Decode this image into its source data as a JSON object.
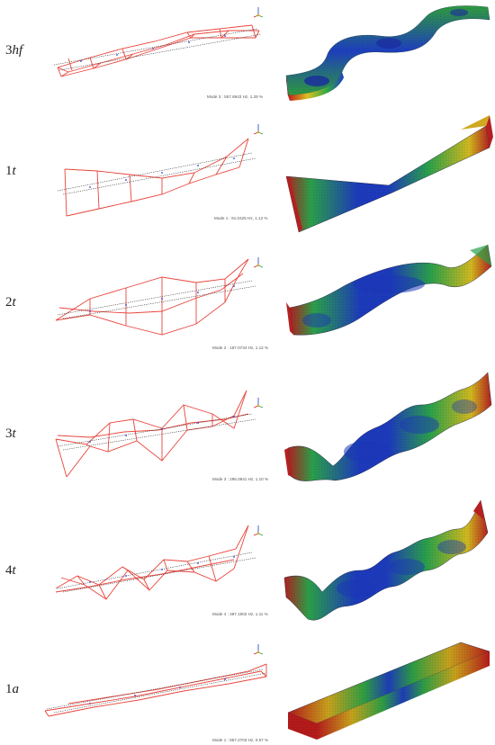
{
  "modes": [
    {
      "id": "3hf",
      "label_num": "3",
      "label_letters": "hf",
      "caption": "Mode  3 : 557.6943 Hz, 1.29 %"
    },
    {
      "id": "1t",
      "label_num": "1",
      "label_letters": "t",
      "caption": "Mode  1 : 91.0425 Hz, 1.12 %"
    },
    {
      "id": "2t",
      "label_num": "2",
      "label_letters": "t",
      "caption": "Mode  2 : 187.0734 Hz, 1.12 %"
    },
    {
      "id": "3t",
      "label_num": "3",
      "label_letters": "t",
      "caption": "Mode  3 : 295.0841 Hz, 1.10 %"
    },
    {
      "id": "4t",
      "label_num": "4",
      "label_letters": "t",
      "caption": "Mode  4 : 397.1902 Hz, 1.11 %"
    },
    {
      "id": "1a",
      "label_num": "1",
      "label_letters": "a",
      "caption": "Mode  1 : 857.2703 Hz, 0.57 %"
    }
  ],
  "colors": {
    "wire": "#e8453c",
    "undeformed": "#333333",
    "contour_low": "#1a2fb8",
    "contour_mid": "#2bb24a",
    "contour_high": "#c81e1e"
  }
}
